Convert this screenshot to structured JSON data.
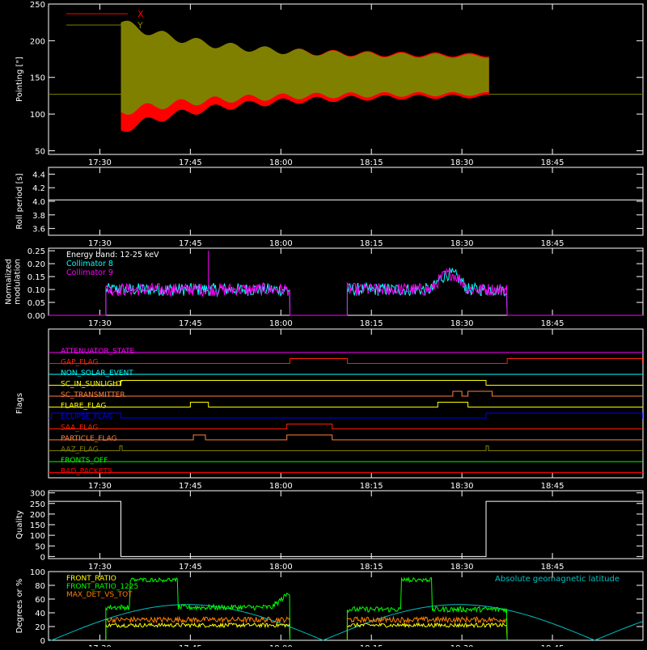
{
  "time_ticks": [
    "17:30",
    "17:45",
    "18:00",
    "18:15",
    "18:30",
    "18:45"
  ],
  "chart_data": [
    {
      "type": "area",
      "ylabel": "Pointing [\"]",
      "ylim": [
        45,
        250
      ],
      "yticks": [
        "50",
        "100",
        "150",
        "200",
        "250"
      ],
      "legend": [
        "X",
        "Y"
      ],
      "colors": {
        "X": "#ff0000",
        "Y": "#808000",
        "baseline": "#808000"
      },
      "baseline_value": 127,
      "active_window": [
        "17:33.5",
        "18:34.5"
      ],
      "series": [
        {
          "name": "X",
          "upper_start": 215,
          "upper_end": 180,
          "lower_start": 78,
          "lower_end": 125
        },
        {
          "name": "Y",
          "upper_start": 225,
          "upper_end": 178,
          "lower_start": 103,
          "lower_end": 128
        }
      ]
    },
    {
      "type": "line",
      "ylabel": "Roll period [s]",
      "ylim": [
        3.5,
        4.5
      ],
      "yticks": [
        "3.6",
        "3.8",
        "4.0",
        "4.2",
        "4.4"
      ],
      "value": 4.02,
      "color": "#ffffff"
    },
    {
      "type": "line",
      "ylabel": "Normalized modulation",
      "ylabel_lines": [
        "Normalized",
        "modulation"
      ],
      "ylim": [
        0,
        0.26
      ],
      "yticks": [
        "0.00",
        "0.05",
        "0.10",
        "0.15",
        "0.20",
        "0.25"
      ],
      "annotations": [
        "Energy band: 12-25 keV",
        "Collimator 8",
        "Collimator 9"
      ],
      "colors": {
        "c8": "#00ffff",
        "c9": "#ff00ff",
        "energy": "#ffffff"
      },
      "segments": [
        {
          "start": "17:31.0",
          "end": "18:01.5",
          "level": 0.1
        },
        {
          "start": "18:11.0",
          "end": "18:37.5",
          "level": 0.1
        }
      ],
      "spike": {
        "time": "17:48.0",
        "value": 0.25
      }
    },
    {
      "type": "table",
      "ylabel": "Flags",
      "flags": [
        {
          "name": "ATTENUATOR_STATE",
          "color": "#ff00ff",
          "high": []
        },
        {
          "name": "GAP_FLAG",
          "color": "#ff2000",
          "high": [
            [
              "18:01.5",
              "18:11.0"
            ],
            [
              "18:37.5",
              "18:59.9"
            ]
          ]
        },
        {
          "name": "NON_SOLAR_EVENT",
          "color": "#00ffff",
          "high": []
        },
        {
          "name": "SC_IN_SUNLIGHT",
          "color": "#ffff00",
          "high": [
            [
              "17:33.5",
              "18:34.0"
            ]
          ]
        },
        {
          "name": "SC_TRANSMITTER",
          "color": "#ff8040",
          "high": [
            [
              "18:28.5",
              "18:30.0"
            ],
            [
              "18:31.0",
              "18:35.0"
            ]
          ]
        },
        {
          "name": "FLARE_FLAG",
          "color": "#ffff00",
          "high": [
            [
              "17:45.0",
              "17:48.0"
            ],
            [
              "18:26.0",
              "18:31.0"
            ]
          ]
        },
        {
          "name": "ECLIPSE_FLAG",
          "color": "#0000ff",
          "high": [
            [
              "17:22.0",
              "17:33.5"
            ],
            [
              "18:34.0",
              "18:59.9"
            ]
          ]
        },
        {
          "name": "SAA_FLAG",
          "color": "#ff2000",
          "high": [
            [
              "18:01.0",
              "18:08.5"
            ]
          ]
        },
        {
          "name": "PARTICLE_FLAG",
          "color": "#ff8040",
          "high": [
            [
              "17:45.5",
              "17:47.5"
            ],
            [
              "18:01.0",
              "18:08.5"
            ]
          ]
        },
        {
          "name": "AAZ_FLAG",
          "color": "#808000",
          "high": [
            [
              "17:33.3",
              "17:33.7"
            ],
            [
              "18:34.0",
              "18:34.4"
            ]
          ]
        },
        {
          "name": "FRONTS_OFF",
          "color": "#00ff00",
          "high": []
        },
        {
          "name": "BAD_PACKETS",
          "color": "#ff0000",
          "high": []
        }
      ]
    },
    {
      "type": "line",
      "ylabel": "Quality",
      "ylim": [
        -10,
        310
      ],
      "yticks": [
        "0",
        "50",
        "100",
        "150",
        "200",
        "250",
        "300"
      ],
      "high_value": 260,
      "low_value": 0,
      "low_window": [
        "17:33.5",
        "18:34.0"
      ],
      "color": "#ffffff"
    },
    {
      "type": "line",
      "ylabel": "Degrees or %",
      "ylim": [
        0,
        100
      ],
      "yticks": [
        "0",
        "20",
        "40",
        "60",
        "80",
        "100"
      ],
      "legend": [
        "FRONT_RATIO",
        "FRONT_RATIO_1225",
        "MAX_DET_VS_TOT"
      ],
      "right_legend": "Absolute geomagnetic latitude",
      "colors": {
        "FRONT_RATIO": "#ffff00",
        "FRONT_RATIO_1225": "#00ff00",
        "MAX_DET_VS_TOT": "#ff8000",
        "lat": "#00c0c0"
      },
      "segments": [
        {
          "start": "17:31.0",
          "end": "18:01.5",
          "green_high": [
            [
              "17:35.0",
              "17:43.0",
              88
            ]
          ],
          "green_base": 48,
          "green_end": 70
        },
        {
          "start": "18:11.0",
          "end": "18:37.5",
          "green_high": [
            [
              "18:20.0",
              "18:25.0",
              88
            ]
          ],
          "green_base": 45,
          "green_end": 45
        }
      ],
      "lat_minima": [
        "17:22.0",
        "18:07.0",
        "18:52.0"
      ],
      "lat_peak": 52
    }
  ]
}
